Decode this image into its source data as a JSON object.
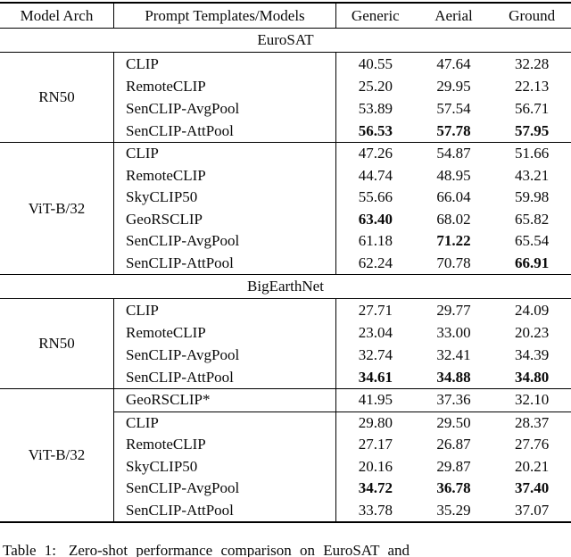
{
  "table": {
    "header": {
      "model_arch": "Model Arch",
      "prompt": "Prompt Templates/Models",
      "generic": "Generic",
      "aerial": "Aerial",
      "ground": "Ground"
    },
    "sections": [
      {
        "title": "EuroSAT",
        "blocks": [
          {
            "arch": "RN50",
            "rows": [
              {
                "model": "CLIP",
                "generic": "40.55",
                "aerial": "47.64",
                "ground": "32.28"
              },
              {
                "model": "RemoteCLIP",
                "generic": "25.20",
                "aerial": "29.95",
                "ground": "22.13"
              },
              {
                "model": "SenCLIP-AvgPool",
                "generic": "53.89",
                "aerial": "57.54",
                "ground": "56.71"
              },
              {
                "model": "SenCLIP-AttPool",
                "generic": "56.53",
                "aerial": "57.78",
                "ground": "57.95",
                "bold": [
                  "generic",
                  "aerial",
                  "ground"
                ]
              }
            ]
          },
          {
            "arch": "ViT-B/32",
            "rows": [
              {
                "model": "CLIP",
                "generic": "47.26",
                "aerial": "54.87",
                "ground": "51.66"
              },
              {
                "model": "RemoteCLIP",
                "generic": "44.74",
                "aerial": "48.95",
                "ground": "43.21"
              },
              {
                "model": "SkyCLIP50",
                "generic": "55.66",
                "aerial": "66.04",
                "ground": "59.98"
              },
              {
                "model": "GeoRSCLIP",
                "generic": "63.40",
                "aerial": "68.02",
                "ground": "65.82",
                "bold": [
                  "generic"
                ]
              },
              {
                "model": "SenCLIP-AvgPool",
                "generic": "61.18",
                "aerial": "71.22",
                "ground": "65.54",
                "bold": [
                  "aerial"
                ]
              },
              {
                "model": "SenCLIP-AttPool",
                "generic": "62.24",
                "aerial": "70.78",
                "ground": "66.91",
                "bold": [
                  "ground"
                ]
              }
            ]
          }
        ]
      },
      {
        "title": "BigEarthNet",
        "blocks": [
          {
            "arch": "RN50",
            "rows": [
              {
                "model": "CLIP",
                "generic": "27.71",
                "aerial": "29.77",
                "ground": "24.09"
              },
              {
                "model": "RemoteCLIP",
                "generic": "23.04",
                "aerial": "33.00",
                "ground": "20.23"
              },
              {
                "model": "SenCLIP-AvgPool",
                "generic": "32.74",
                "aerial": "32.41",
                "ground": "34.39"
              },
              {
                "model": "SenCLIP-AttPool",
                "generic": "34.61",
                "aerial": "34.88",
                "ground": "34.80",
                "bold": [
                  "generic",
                  "aerial",
                  "ground"
                ]
              }
            ]
          },
          {
            "arch": "ViT-B/32",
            "rows": [
              {
                "model": "GeoRSCLIP*",
                "generic": "41.95",
                "aerial": "37.36",
                "ground": "32.10"
              },
              {
                "model": "CLIP",
                "generic": "29.80",
                "aerial": "29.50",
                "ground": "28.37"
              },
              {
                "model": "RemoteCLIP",
                "generic": "27.17",
                "aerial": "26.87",
                "ground": "27.76"
              },
              {
                "model": "SkyCLIP50",
                "generic": "20.16",
                "aerial": "29.87",
                "ground": "20.21"
              },
              {
                "model": "SenCLIP-AvgPool",
                "generic": "34.72",
                "aerial": "36.78",
                "ground": "37.40",
                "bold": [
                  "generic",
                  "aerial",
                  "ground"
                ]
              },
              {
                "model": "SenCLIP-AttPool",
                "generic": "33.78",
                "aerial": "35.29",
                "ground": "37.07"
              }
            ]
          }
        ]
      }
    ]
  },
  "caption": {
    "label": "Table 1:",
    "text": "Zero-shot performance comparison on EuroSAT and"
  }
}
